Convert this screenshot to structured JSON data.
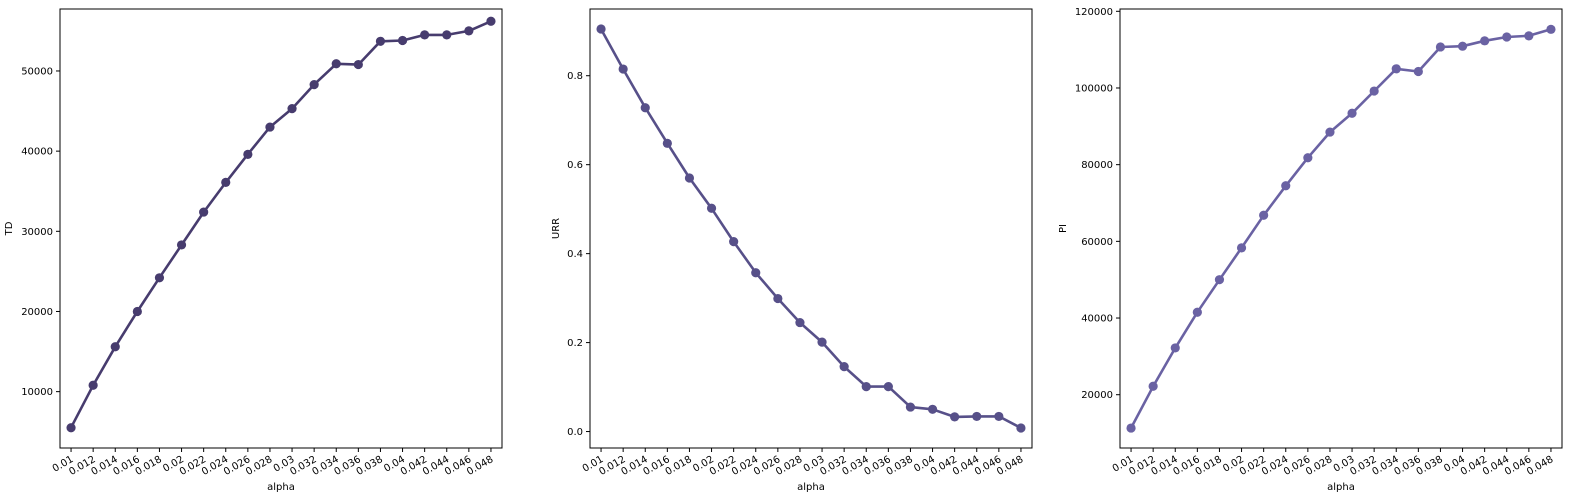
{
  "chart_data": [
    {
      "type": "line",
      "xlabel": "alpha",
      "ylabel": "TD",
      "color": "#473c6e",
      "x": [
        "0.01",
        "0.012",
        "0.014",
        "0.016",
        "0.018",
        "0.02",
        "0.022",
        "0.024",
        "0.026",
        "0.028",
        "0.03",
        "0.032",
        "0.034",
        "0.036",
        "0.038",
        "0.04",
        "0.042",
        "0.044",
        "0.046",
        "0.048"
      ],
      "values": [
        5500,
        10800,
        15600,
        20000,
        24200,
        28300,
        32400,
        36100,
        39600,
        43000,
        45300,
        48300,
        50900,
        50800,
        53700,
        53800,
        54500,
        54500,
        55000,
        56200
      ],
      "yticks": [
        10000,
        20000,
        30000,
        40000,
        50000
      ],
      "ytick_labels": [
        "10000",
        "20000",
        "30000",
        "40000",
        "50000"
      ],
      "ylim": [
        2970,
        57730
      ],
      "grid": false
    },
    {
      "type": "line",
      "xlabel": "alpha",
      "ylabel": "URR",
      "color": "#575089",
      "x": [
        "0.01",
        "0.012",
        "0.014",
        "0.016",
        "0.018",
        "0.02",
        "0.022",
        "0.024",
        "0.026",
        "0.028",
        "0.03",
        "0.032",
        "0.034",
        "0.036",
        "0.038",
        "0.04",
        "0.042",
        "0.044",
        "0.046",
        "0.048"
      ],
      "values": [
        0.905,
        0.815,
        0.728,
        0.648,
        0.57,
        0.502,
        0.427,
        0.357,
        0.299,
        0.245,
        0.201,
        0.146,
        0.101,
        0.101,
        0.055,
        0.05,
        0.033,
        0.034,
        0.034,
        0.008
      ],
      "yticks": [
        0.0,
        0.2,
        0.4,
        0.6,
        0.8
      ],
      "ytick_labels": [
        "0.0",
        "0.2",
        "0.4",
        "0.6",
        "0.8"
      ],
      "ylim": [
        -0.037,
        0.95
      ],
      "grid": false
    },
    {
      "type": "line",
      "xlabel": "alpha",
      "ylabel": "PI",
      "color": "#6a62a3",
      "x": [
        "0.01",
        "0.012",
        "0.014",
        "0.016",
        "0.018",
        "0.02",
        "0.022",
        "0.024",
        "0.026",
        "0.028",
        "0.03",
        "0.032",
        "0.034",
        "0.036",
        "0.038",
        "0.04",
        "0.042",
        "0.044",
        "0.046",
        "0.048"
      ],
      "values": [
        11300,
        22200,
        32200,
        41500,
        50000,
        58300,
        66800,
        74500,
        81800,
        88500,
        93400,
        99200,
        105000,
        104300,
        110700,
        110900,
        112300,
        113300,
        113600,
        115300
      ],
      "yticks": [
        20000,
        40000,
        60000,
        80000,
        100000,
        120000
      ],
      "ytick_labels": [
        "20000",
        "40000",
        "60000",
        "80000",
        "100000",
        "120000"
      ],
      "ylim": [
        6100,
        120600
      ],
      "grid": false
    }
  ]
}
